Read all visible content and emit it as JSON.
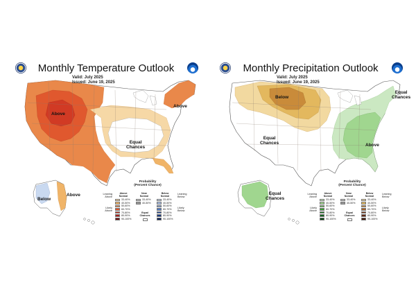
{
  "colors": {
    "above_33": "#f6d8a6",
    "above_40": "#f0b468",
    "above_50": "#e9884a",
    "above_60": "#e0582e",
    "above_70": "#d13a24",
    "above_80": "#a8201c",
    "above_90": "#6e1010",
    "below_33": "#c9d9f0",
    "below_40": "#a9bfe6",
    "normal_33": "#cccccc",
    "normal_40": "#999999",
    "wet_33": "#cbe8c2",
    "wet_40": "#a0d68f",
    "wet_50": "#6fbf5e",
    "wet_60": "#3e9e3a",
    "wet_70": "#23802a",
    "wet_80": "#14621f",
    "wet_90": "#0b4214",
    "dry_33": "#f2d9a0",
    "dry_40": "#e3b85e",
    "dry_50": "#c98b3a",
    "dry_60": "#a8632a",
    "dry_70": "#7f3d1c",
    "dry_80": "#5f2712",
    "dry_90": "#40180a"
  },
  "temperature": {
    "title": "Monthly Temperature Outlook",
    "valid": "Valid:  July 2025",
    "issued": "Issued:  June 19, 2025",
    "labels": {
      "above_west": "Above",
      "above_northeast": "Above",
      "equal_chances": "Equal\nChances",
      "below_alaska": "Below",
      "above_alaska": "Above"
    },
    "legend": {
      "title": "Probability\n(Percent Chance)",
      "col_above": "Above\nNormal",
      "col_near": "Near\nNormal",
      "col_below": "Below\nNormal",
      "leaning_above": "Leaning\nAbove",
      "likely_above": "Likely\nAbove",
      "leaning_below": "Leaning\nBelow",
      "likely_below": "Likely\nBelow",
      "equal_chances": "Equal\nChances",
      "ranges": [
        "33-40%",
        "40-50%",
        "50-60%",
        "60-70%",
        "70-80%",
        "80-90%",
        "90-100%"
      ],
      "near_ranges": [
        "33-40%",
        "40-50%"
      ]
    }
  },
  "precipitation": {
    "title": "Monthly Precipitation Outlook",
    "valid": "Valid:  July 2025",
    "issued": "Issued:  June 19, 2025",
    "labels": {
      "below_north": "Below",
      "equal_west": "Equal\nChances",
      "above_east": "Above",
      "equal_east": "Equal\nChances",
      "equal_alaska": "Equal\nChances"
    },
    "legend": {
      "title": "Probability\n(Percent Chance)",
      "col_above": "Above\nNormal",
      "col_near": "Near\nNormal",
      "col_below": "Below\nNormal",
      "leaning_above": "Leaning\nAbove",
      "likely_above": "Likely\nAbove",
      "leaning_below": "Leaning\nBelow",
      "likely_below": "Likely\nBelow",
      "equal_chances": "Equal\nChances",
      "ranges": [
        "33-40%",
        "40-50%",
        "50-60%",
        "60-70%",
        "70-80%",
        "80-90%",
        "90-100%"
      ],
      "near_ranges": [
        "33-40%",
        "40-50%"
      ]
    }
  }
}
